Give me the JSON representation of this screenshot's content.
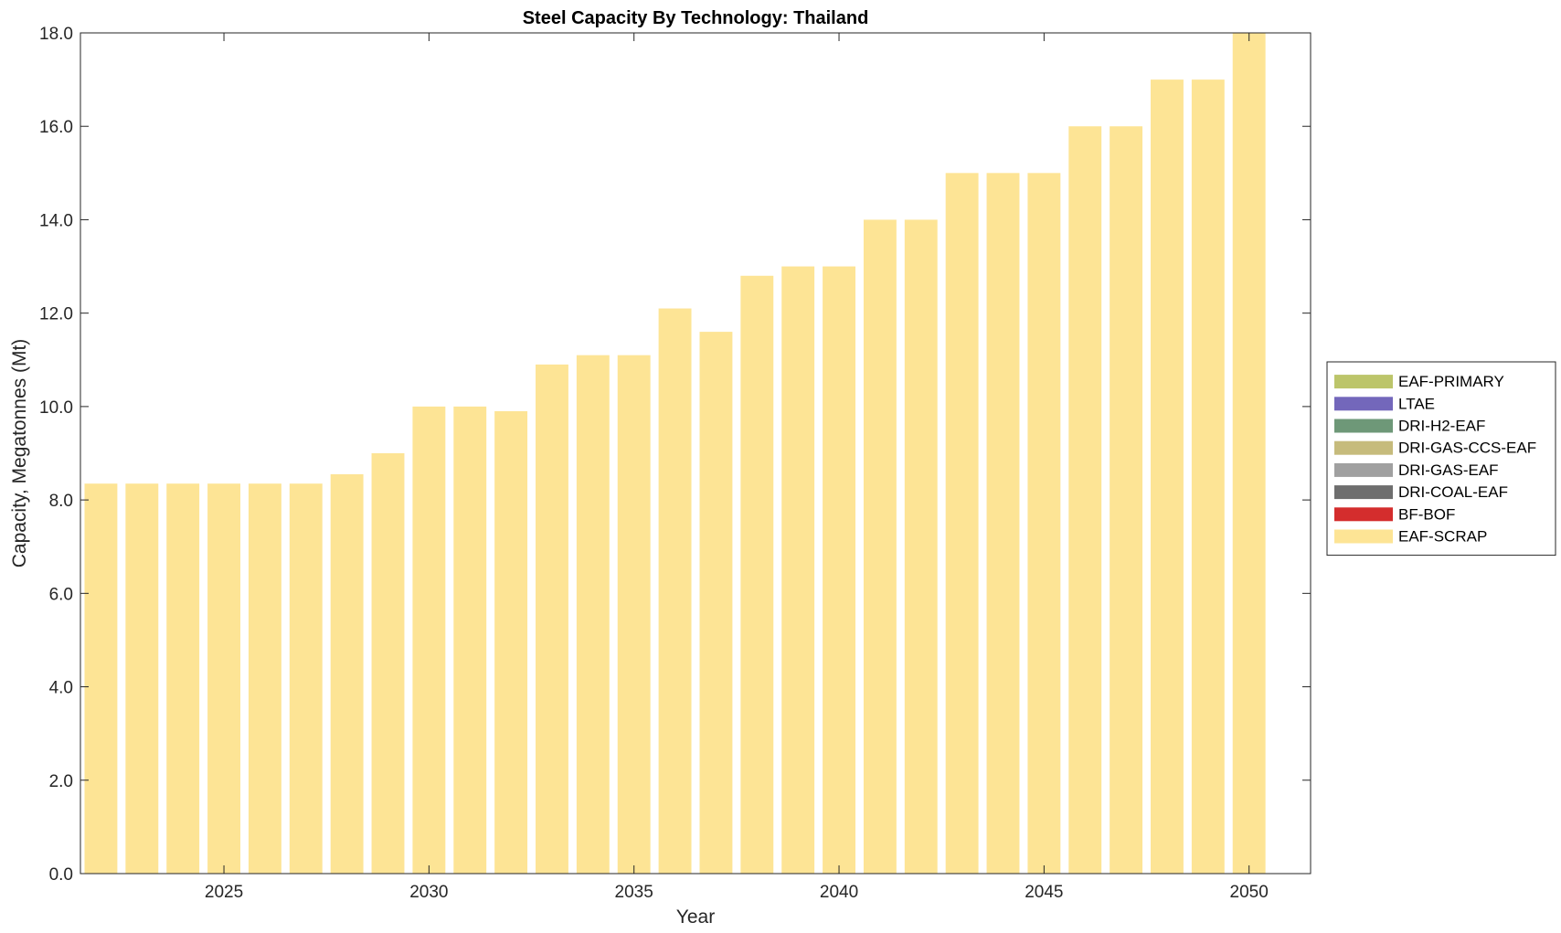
{
  "chart_data": {
    "type": "bar",
    "stacked": true,
    "title": "Steel Capacity By Technology: Thailand",
    "xlabel": "Year",
    "ylabel": "Capacity, Megatonnes (Mt)",
    "x": [
      2022,
      2023,
      2024,
      2025,
      2026,
      2027,
      2028,
      2029,
      2030,
      2031,
      2032,
      2033,
      2034,
      2035,
      2036,
      2037,
      2038,
      2039,
      2040,
      2041,
      2042,
      2043,
      2044,
      2045,
      2046,
      2047,
      2048,
      2049,
      2050
    ],
    "xlim": [
      2021.5,
      2051.5
    ],
    "ylim": [
      0,
      18
    ],
    "xticks": [
      2025,
      2030,
      2035,
      2040,
      2045,
      2050
    ],
    "xtick_labels": [
      "2025",
      "2030",
      "2035",
      "2040",
      "2045",
      "2050"
    ],
    "yticks": [
      0,
      2,
      4,
      6,
      8,
      10,
      12,
      14,
      16,
      18
    ],
    "ytick_labels": [
      "0.0",
      "2.0",
      "4.0",
      "6.0",
      "8.0",
      "10.0",
      "12.0",
      "14.0",
      "16.0",
      "18.0"
    ],
    "grid": false,
    "legend_position": "right",
    "series": [
      {
        "name": "EAF-PRIMARY",
        "color": "#bcc56a",
        "values": [
          0,
          0,
          0,
          0,
          0,
          0,
          0,
          0,
          0,
          0,
          0,
          0,
          0,
          0,
          0,
          0,
          0,
          0,
          0,
          0,
          0,
          0,
          0,
          0,
          0,
          0,
          0,
          0,
          0
        ]
      },
      {
        "name": "LTAE",
        "color": "#7367bb",
        "values": [
          0,
          0,
          0,
          0,
          0,
          0,
          0,
          0,
          0,
          0,
          0,
          0,
          0,
          0,
          0,
          0,
          0,
          0,
          0,
          0,
          0,
          0,
          0,
          0,
          0,
          0,
          0,
          0,
          0
        ]
      },
      {
        "name": "DRI-H2-EAF",
        "color": "#6e9878",
        "values": [
          0,
          0,
          0,
          0,
          0,
          0,
          0,
          0,
          0,
          0,
          0,
          0,
          0,
          0,
          0,
          0,
          0,
          0,
          0,
          0,
          0,
          0,
          0,
          0,
          0,
          0,
          0,
          0,
          0
        ]
      },
      {
        "name": "DRI-GAS-CCS-EAF",
        "color": "#c6bb7c",
        "values": [
          0,
          0,
          0,
          0,
          0,
          0,
          0,
          0,
          0,
          0,
          0,
          0,
          0,
          0,
          0,
          0,
          0,
          0,
          0,
          0,
          0,
          0,
          0,
          0,
          0,
          0,
          0,
          0,
          0
        ]
      },
      {
        "name": "DRI-GAS-EAF",
        "color": "#a0a0a0",
        "values": [
          0,
          0,
          0,
          0,
          0,
          0,
          0,
          0,
          0,
          0,
          0,
          0,
          0,
          0,
          0,
          0,
          0,
          0,
          0,
          0,
          0,
          0,
          0,
          0,
          0,
          0,
          0,
          0,
          0
        ]
      },
      {
        "name": "DRI-COAL-EAF",
        "color": "#6e6e6e",
        "values": [
          0,
          0,
          0,
          0,
          0,
          0,
          0,
          0,
          0,
          0,
          0,
          0,
          0,
          0,
          0,
          0,
          0,
          0,
          0,
          0,
          0,
          0,
          0,
          0,
          0,
          0,
          0,
          0,
          0
        ]
      },
      {
        "name": "BF-BOF",
        "color": "#d42d2d",
        "values": [
          0,
          0,
          0,
          0,
          0,
          0,
          0,
          0,
          0,
          0,
          0,
          0,
          0,
          0,
          0,
          0,
          0,
          0,
          0,
          0,
          0,
          0,
          0,
          0,
          0,
          0,
          0,
          0,
          0
        ]
      },
      {
        "name": "EAF-SCRAP",
        "color": "#fde495",
        "values": [
          8.35,
          8.35,
          8.35,
          8.35,
          8.35,
          8.35,
          8.55,
          9.0,
          10.0,
          10.0,
          9.9,
          10.9,
          11.1,
          11.1,
          12.1,
          11.6,
          12.8,
          13.0,
          13.0,
          14.0,
          14.0,
          15.0,
          15.0,
          15.0,
          16.0,
          16.0,
          17.0,
          17.0,
          18.0
        ]
      }
    ]
  }
}
